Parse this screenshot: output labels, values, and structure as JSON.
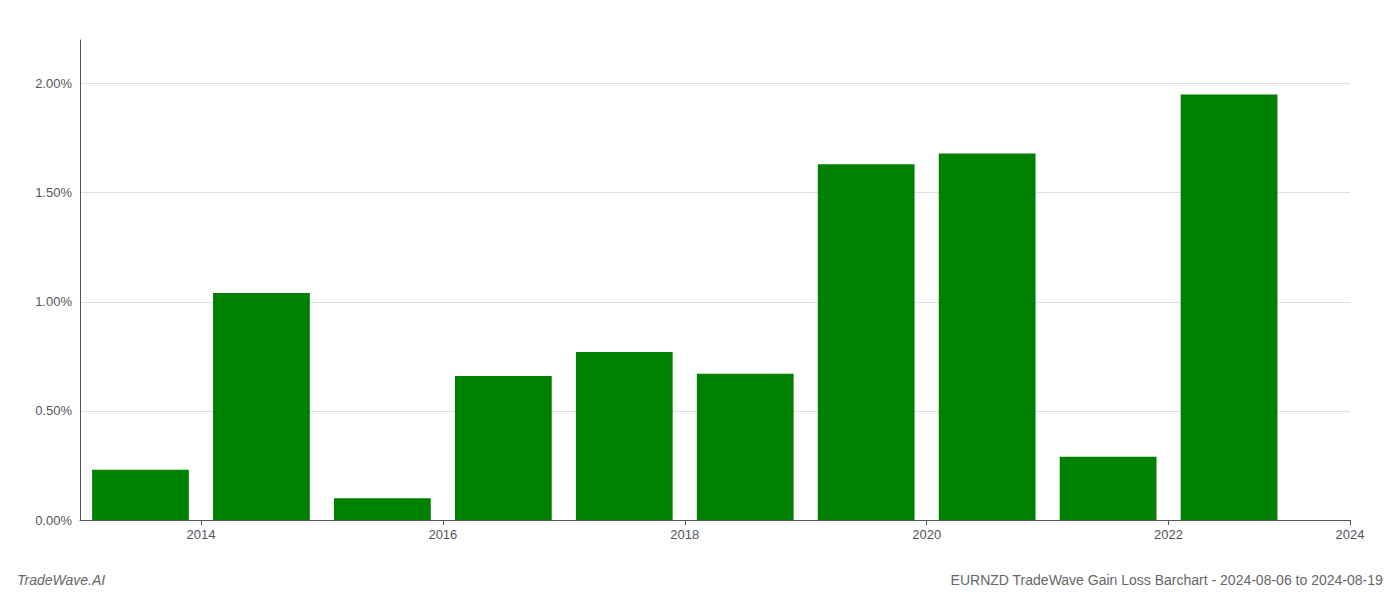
{
  "chart_data": {
    "type": "bar",
    "title": "EURNZD TradeWave Gain Loss Barchart - 2024-08-06 to 2024-08-19",
    "annotations": [
      "TradeWave.AI"
    ],
    "x": [
      2014,
      2015,
      2016,
      2017,
      2018,
      2019,
      2020,
      2021,
      2022,
      2023
    ],
    "values": [
      0.0023,
      0.0104,
      0.001,
      0.0066,
      0.0077,
      0.0067,
      0.0163,
      0.0168,
      0.0029,
      0.0195
    ],
    "color": "#008000",
    "xlim": [
      2013.5,
      2024.0
    ],
    "xticks": [
      {
        "value": 2014.5,
        "label": "2014"
      },
      {
        "value": 2016.5,
        "label": "2016"
      },
      {
        "value": 2018.5,
        "label": "2018"
      },
      {
        "value": 2020.5,
        "label": "2020"
      },
      {
        "value": 2022.5,
        "label": "2022"
      },
      {
        "value": 2024.0,
        "label": "2024"
      }
    ],
    "ylim": [
      0.0,
      0.022
    ],
    "yticks": [
      {
        "value": 0.0,
        "label": "0.00%"
      },
      {
        "value": 0.005,
        "label": "0.50%"
      },
      {
        "value": 0.01,
        "label": "1.00%"
      },
      {
        "value": 0.015,
        "label": "1.50%"
      },
      {
        "value": 0.02,
        "label": "2.00%"
      }
    ],
    "grid": true
  }
}
